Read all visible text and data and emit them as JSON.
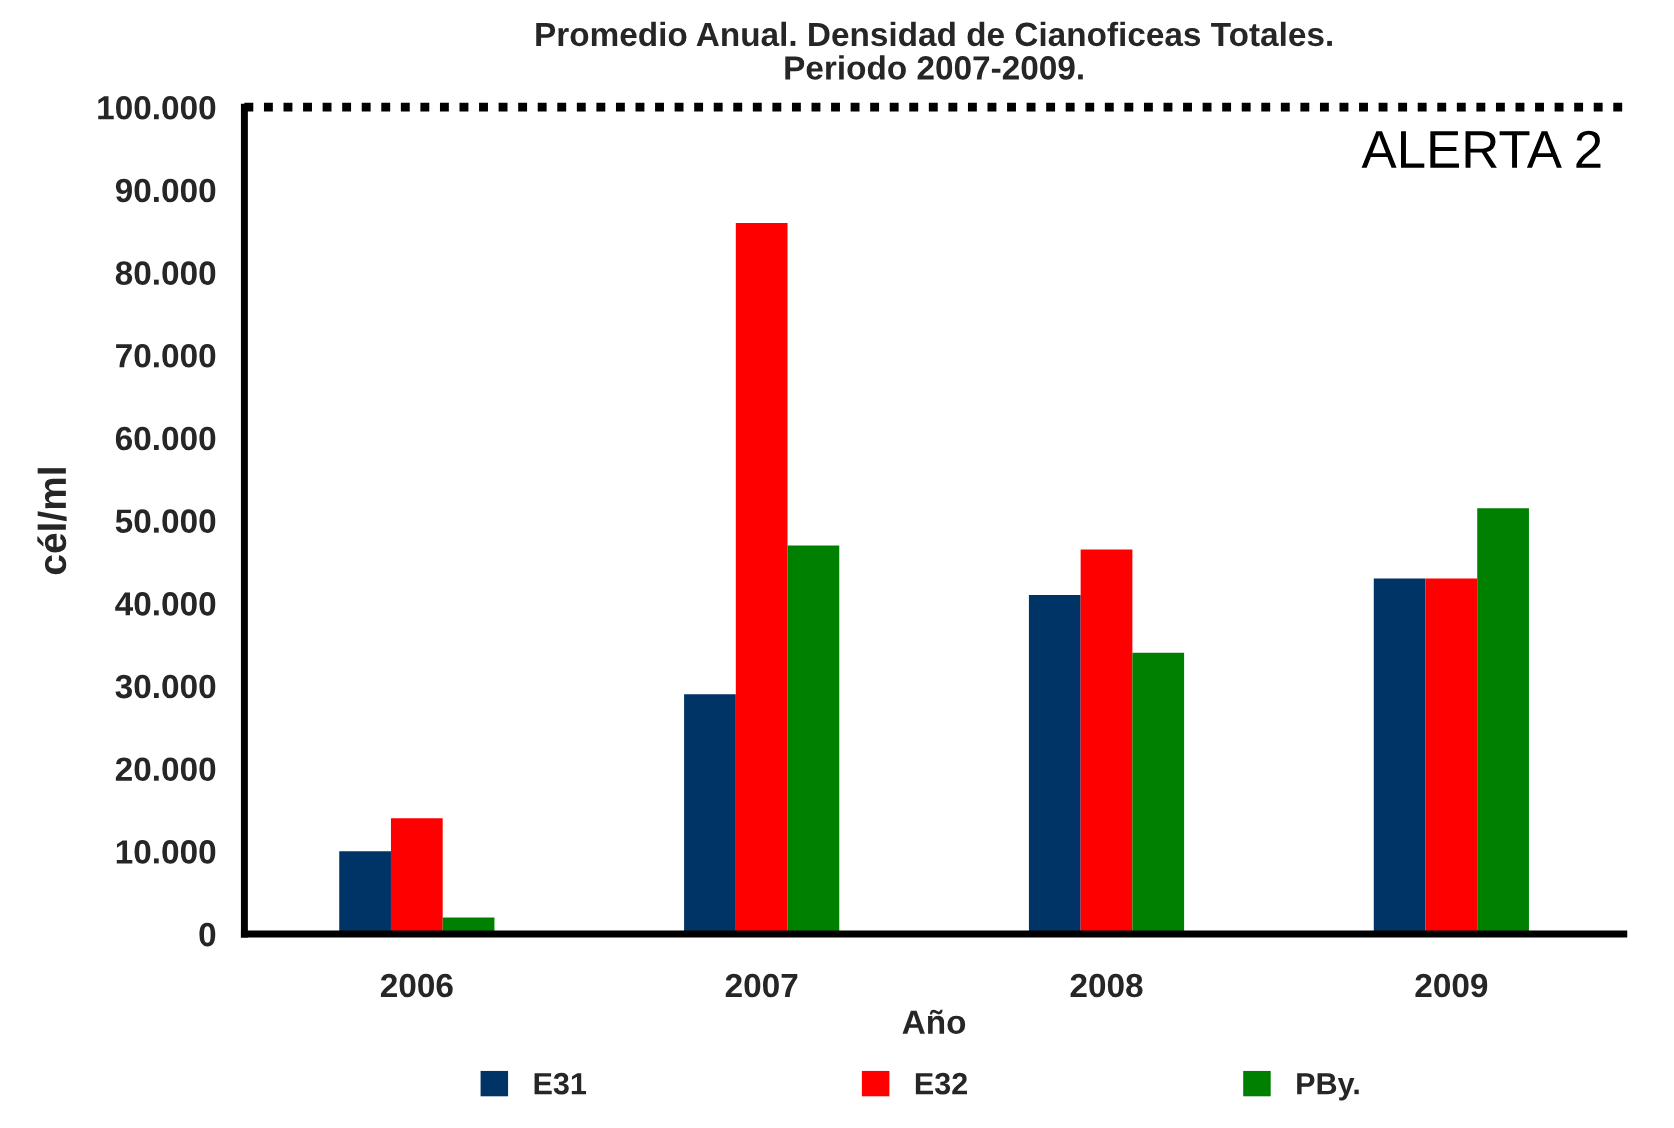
{
  "chart_data": {
    "type": "bar",
    "title": "Promedio Anual. Densidad de Cianoficeas Totales.\nPeriodo 2007-2009.",
    "xlabel": "Año",
    "ylabel": "cél/ml",
    "categories": [
      "2006",
      "2007",
      "2008",
      "2009"
    ],
    "series": [
      {
        "name": "E31",
        "color": "#003366",
        "values": [
          10000,
          29000,
          41000,
          43000
        ]
      },
      {
        "name": "E32",
        "color": "#ff0000",
        "values": [
          14000,
          86000,
          46500,
          43000
        ]
      },
      {
        "name": "PBy.",
        "color": "#008000",
        "values": [
          2000,
          47000,
          34000,
          51500
        ]
      }
    ],
    "ylim": [
      0,
      100000
    ],
    "yticks": [
      0,
      {
        "value": 10000,
        "label": "10.000"
      },
      {
        "value": 20000,
        "label": "20.000"
      },
      {
        "value": 30000,
        "label": "30.000"
      },
      {
        "value": 40000,
        "label": "40.000"
      },
      {
        "value": 50000,
        "label": "50.000"
      },
      {
        "value": 60000,
        "label": "60.000"
      },
      {
        "value": 70000,
        "label": "70.000"
      },
      {
        "value": 80000,
        "label": "80.000"
      },
      {
        "value": 90000,
        "label": "90.000"
      },
      {
        "value": 100000,
        "label": "100.000"
      }
    ],
    "ref_lines": [
      {
        "axis": "y",
        "value": 100000,
        "label": "ALERTA 2",
        "color": "#000000",
        "line_style": "dotted"
      }
    ],
    "legend": "bottom"
  }
}
